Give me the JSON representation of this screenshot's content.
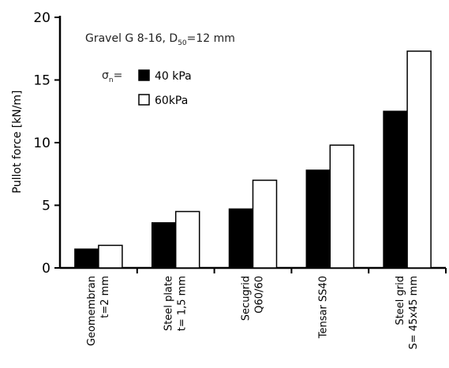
{
  "chart_data": {
    "type": "bar",
    "ylabel": "Pullot force [kN/m]",
    "ylim": [
      0,
      20
    ],
    "yticks": [
      "0",
      "5",
      "10",
      "15",
      "20"
    ],
    "annotation": {
      "main": "Gravel G 8-16, D",
      "sub": "50",
      "suffix": "=12 mm",
      "sigma_prefix": "σ",
      "sigma_sub": "n",
      "sigma_suffix": "="
    },
    "categories": [
      {
        "line1": "Geomembran",
        "line2": "t=2 mm"
      },
      {
        "line1": "Steel plate",
        "line2": "t= 1,5 mm"
      },
      {
        "line1": "Secugrid",
        "line2": "Q60/60"
      },
      {
        "line1": "Tensar SS40",
        "line2": ""
      },
      {
        "line1": "Steel grid",
        "line2": "S= 45x45 mm"
      }
    ],
    "series": [
      {
        "name": "40 kPa",
        "color": "#000000",
        "values": [
          1.5,
          3.6,
          4.7,
          7.8,
          12.5
        ]
      },
      {
        "name": "60kPa",
        "color": "#ffffff",
        "values": [
          1.8,
          4.5,
          7.0,
          9.8,
          17.3
        ]
      }
    ],
    "legend_position": "top-left"
  }
}
